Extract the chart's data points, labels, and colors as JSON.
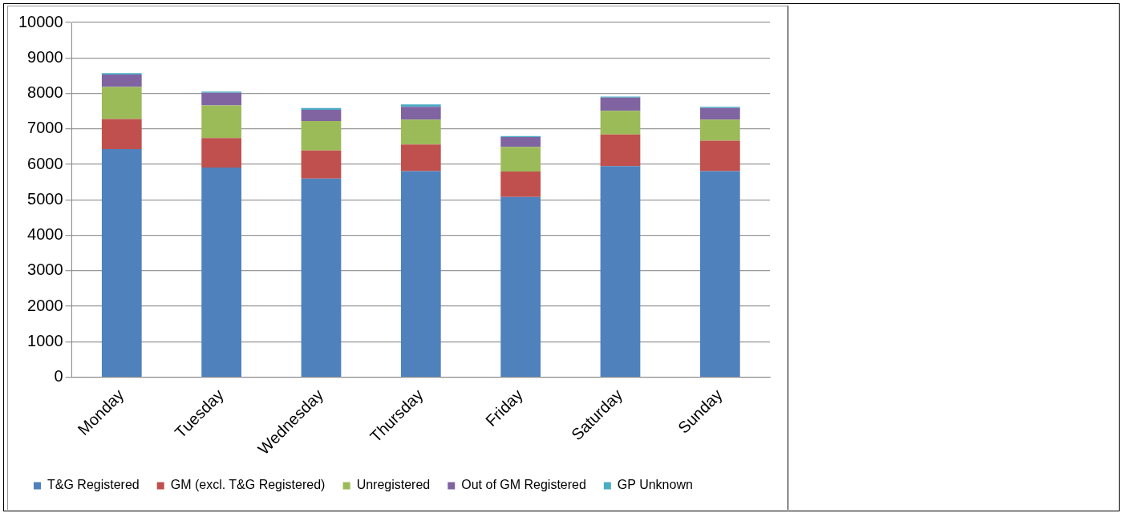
{
  "chart_data": {
    "type": "bar",
    "stacked": true,
    "categories": [
      "Monday",
      "Tuesday",
      "Wednesday",
      "Thursday",
      "Friday",
      "Saturday",
      "Sunday"
    ],
    "series": [
      {
        "name": "T&G Registered",
        "color": "#4f81bd",
        "values": [
          6430,
          5910,
          5600,
          5810,
          5080,
          5950,
          5810
        ]
      },
      {
        "name": "GM (excl. T&G Registered)",
        "color": "#c0504d",
        "values": [
          850,
          830,
          790,
          750,
          720,
          890,
          860
        ]
      },
      {
        "name": "Unregistered",
        "color": "#9bbb59",
        "values": [
          900,
          920,
          830,
          700,
          690,
          670,
          590
        ]
      },
      {
        "name": "Out of GM Registered",
        "color": "#8064a2",
        "values": [
          350,
          360,
          320,
          360,
          280,
          370,
          330
        ]
      },
      {
        "name": "GP Unknown",
        "color": "#4bacc6",
        "values": [
          40,
          30,
          50,
          70,
          30,
          30,
          30
        ]
      }
    ],
    "ylim": [
      0,
      10000
    ],
    "yticks": [
      0,
      1000,
      2000,
      3000,
      4000,
      5000,
      6000,
      7000,
      8000,
      9000,
      10000
    ],
    "grid": "y",
    "legend": "bottom"
  }
}
